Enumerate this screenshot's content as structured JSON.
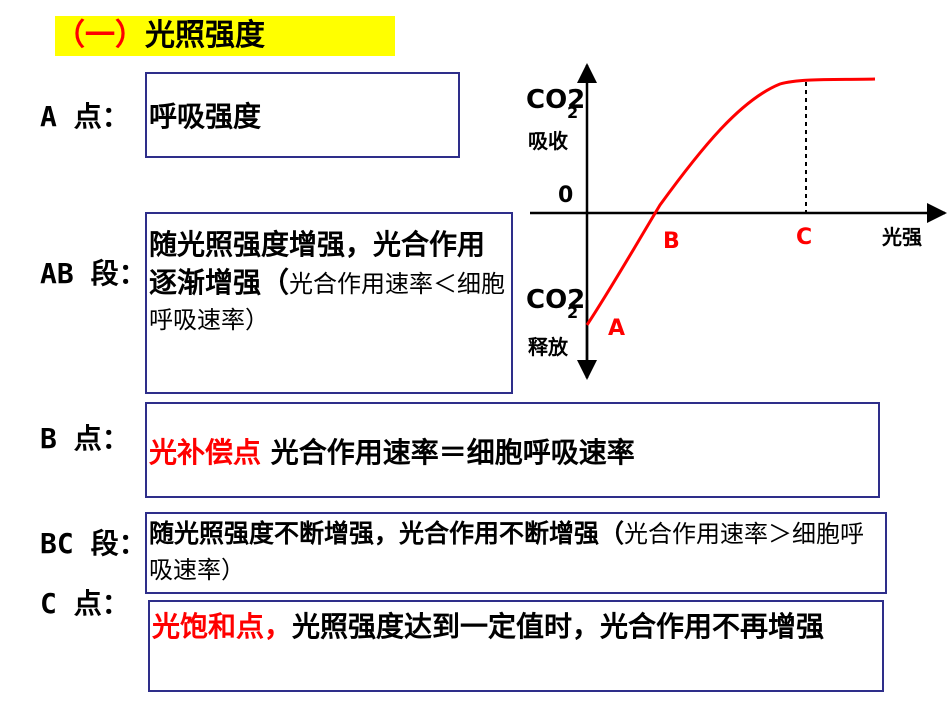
{
  "title": {
    "paren_open": "（",
    "dash": "一",
    "paren_close": "）",
    "text": "光照强度"
  },
  "labels": {
    "a": "A 点：",
    "ab": "AB 段：",
    "b": "B 点：",
    "bc": "BC 段：",
    "c": "C 点："
  },
  "boxes": {
    "a_text": "呼吸强度",
    "ab_bold": "随光照强度增强，光合作用逐渐增强（",
    "ab_normal": "光合作用速率＜细胞呼吸速率）",
    "b_red": "光补偿点",
    "b_text": "光合作用速率＝细胞呼吸速率",
    "bc_bold": "随光照强度不断增强，光合作用不断增强（",
    "bc_normal": "光合作用速率＞细胞呼吸速率）",
    "c_red": "光饱和点，",
    "c_text": "光照强度达到一定值时，光合作用不再增强"
  },
  "graph": {
    "y_top_label": "CO2",
    "y_top_sub": "吸收",
    "origin": "0",
    "y_bottom_label": "CO2",
    "y_bottom_sub": "释放",
    "x_label": "光强",
    "point_a": "A",
    "point_b": "B",
    "point_c": "C",
    "curve_color": "#ff0000",
    "label_color": "#ff0000"
  }
}
